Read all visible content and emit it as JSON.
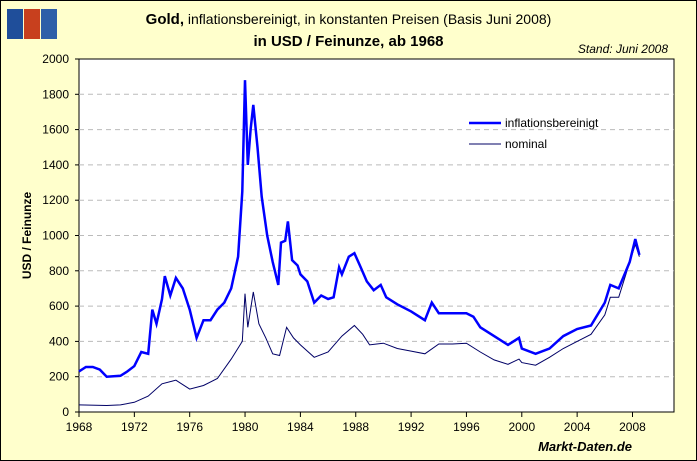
{
  "title": {
    "bold": "Gold,",
    "rest": " inflationsbereinigt, in konstanten Preisen (Basis Juni 2008)",
    "subtitle": "in USD / Feinunze, ab 1968"
  },
  "stand": "Stand: Juni 2008",
  "source": "Markt-Daten.de",
  "logo_colors": [
    "#1F4E9A",
    "#C8401E",
    "#2E5FA8"
  ],
  "chart_data": {
    "type": "line",
    "ylabel": "USD / Feinunze",
    "xlabel": "",
    "xlim": [
      1968,
      2011
    ],
    "ylim": [
      0,
      2000
    ],
    "xticks": [
      "1968",
      "1972",
      "1976",
      "1980",
      "1984",
      "1988",
      "1992",
      "1996",
      "2000",
      "2004",
      "2008"
    ],
    "yticks": [
      "0",
      "200",
      "400",
      "600",
      "800",
      "1000",
      "1200",
      "1400",
      "1600",
      "1800",
      "2000"
    ],
    "grid": "horizontal dashed",
    "legend": "upper right",
    "series": [
      {
        "name": "inflationsbereinigt",
        "color": "#0000FF",
        "x": [
          1968,
          1968.5,
          1969,
          1969.5,
          1970,
          1971,
          1971.5,
          1972,
          1972.5,
          1973,
          1973.3,
          1973.6,
          1974,
          1974.2,
          1974.6,
          1975,
          1975.5,
          1976,
          1976.5,
          1977,
          1977.5,
          1978,
          1978.5,
          1979,
          1979.5,
          1979.8,
          1980,
          1980.2,
          1980.4,
          1980.6,
          1980.9,
          1981.2,
          1981.6,
          1982,
          1982.4,
          1982.6,
          1982.9,
          1983.1,
          1983.4,
          1983.8,
          1984,
          1984.5,
          1985,
          1985.5,
          1986,
          1986.4,
          1986.8,
          1987,
          1987.5,
          1987.9,
          1988.3,
          1988.8,
          1989.3,
          1989.8,
          1990.2,
          1991,
          1992,
          1993,
          1993.5,
          1994,
          1995,
          1996,
          1996.5,
          1997,
          1998,
          1999,
          1999.8,
          2000,
          2001,
          2002,
          2003,
          2004,
          2005,
          2006,
          2006.4,
          2007,
          2007.8,
          2008.2,
          2008.5
        ],
        "y": [
          230,
          255,
          255,
          240,
          200,
          205,
          230,
          260,
          340,
          330,
          580,
          500,
          640,
          770,
          660,
          760,
          700,
          580,
          420,
          520,
          520,
          580,
          620,
          700,
          880,
          1250,
          1880,
          1400,
          1600,
          1740,
          1500,
          1220,
          1000,
          850,
          720,
          960,
          970,
          1080,
          860,
          830,
          780,
          740,
          620,
          660,
          640,
          650,
          820,
          780,
          880,
          900,
          830,
          740,
          690,
          720,
          650,
          610,
          570,
          520,
          620,
          560,
          560,
          560,
          540,
          480,
          430,
          380,
          420,
          360,
          330,
          360,
          430,
          470,
          490,
          620,
          720,
          700,
          850,
          980,
          890
        ]
      },
      {
        "name": "nominal",
        "color": "#000066",
        "x": [
          1968,
          1970,
          1971,
          1972,
          1973,
          1974,
          1975,
          1976,
          1977,
          1978,
          1979,
          1979.8,
          1980,
          1980.2,
          1980.6,
          1981,
          1981.5,
          1982,
          1982.5,
          1983,
          1983.5,
          1984,
          1985,
          1986,
          1987,
          1987.9,
          1988.5,
          1989,
          1990,
          1991,
          1992,
          1993,
          1994,
          1995,
          1996,
          1997,
          1998,
          1999,
          1999.8,
          2000,
          2001,
          2002,
          2003,
          2004,
          2005,
          2006,
          2006.4,
          2007,
          2008.2,
          2008.5
        ],
        "y": [
          40,
          37,
          40,
          55,
          90,
          160,
          180,
          130,
          150,
          190,
          300,
          400,
          670,
          480,
          680,
          500,
          420,
          330,
          320,
          480,
          420,
          380,
          310,
          340,
          430,
          490,
          440,
          380,
          390,
          360,
          345,
          330,
          385,
          385,
          390,
          340,
          295,
          270,
          300,
          280,
          265,
          310,
          360,
          400,
          440,
          550,
          650,
          650,
          950,
          880
        ]
      }
    ]
  }
}
